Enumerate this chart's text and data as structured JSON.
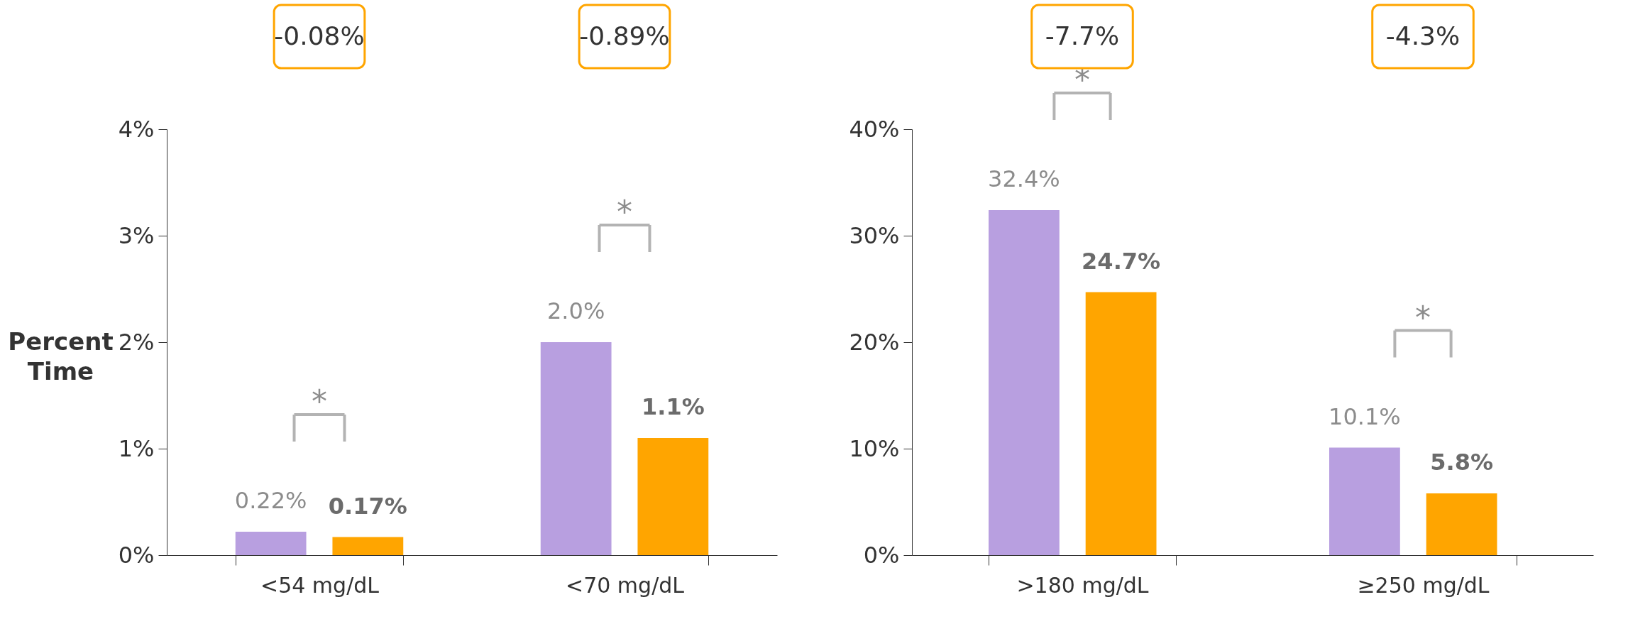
{
  "chart_data": [
    {
      "type": "bar",
      "ylabel": "Percent Time",
      "categories": [
        "<54 mg/dL",
        "<70 mg/dL"
      ],
      "ylim": [
        0,
        4
      ],
      "yticks": [
        {
          "value": 0,
          "label": "0%"
        },
        {
          "value": 1,
          "label": "1%"
        },
        {
          "value": 2,
          "label": "2%"
        },
        {
          "value": 3,
          "label": "3%"
        },
        {
          "value": 4,
          "label": "4%"
        }
      ],
      "series": [
        {
          "color": "#b89fe0",
          "values": [
            0.22,
            2.0
          ],
          "value_labels": [
            "0.22%",
            "2.0%"
          ]
        },
        {
          "color": "#ffa500",
          "values": [
            0.17,
            1.1
          ],
          "value_labels": [
            "0.17%",
            "1.1%"
          ]
        }
      ],
      "annotations": [
        "-0.08%",
        "-0.89%",
        "*",
        "*"
      ]
    },
    {
      "type": "bar",
      "categories": [
        ">180 mg/dL",
        "≥250 mg/dL"
      ],
      "ylim": [
        0,
        40
      ],
      "yticks": [
        {
          "value": 0,
          "label": "0%"
        },
        {
          "value": 10,
          "label": "10%"
        },
        {
          "value": 20,
          "label": "20%"
        },
        {
          "value": 30,
          "label": "30%"
        },
        {
          "value": 40,
          "label": "40%"
        }
      ],
      "series": [
        {
          "color": "#b89fe0",
          "values": [
            32.4,
            10.1
          ],
          "value_labels": [
            "32.4%",
            "10.1%"
          ]
        },
        {
          "color": "#ffa500",
          "values": [
            24.7,
            5.8
          ],
          "value_labels": [
            "24.7%",
            "5.8%"
          ]
        }
      ],
      "annotations": [
        "-7.7%",
        "-4.3%",
        "*",
        "*"
      ]
    }
  ]
}
